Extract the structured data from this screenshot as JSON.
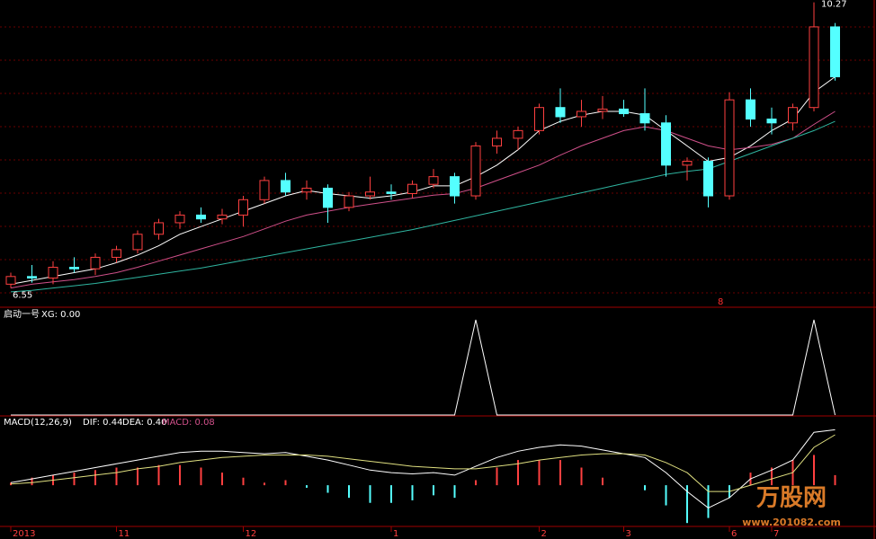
{
  "chart_data": [
    {
      "type": "candlestick",
      "high_label": "10.27",
      "low_label": "6.55",
      "annotation": "8",
      "ylim": [
        6.3,
        10.3
      ],
      "grid": true,
      "up_color": "#ff4040",
      "down_color": "#54ffff",
      "open": [
        6.6,
        6.7,
        6.68,
        6.82,
        6.8,
        6.95,
        7.05,
        7.25,
        7.4,
        7.5,
        7.45,
        7.5,
        7.7,
        7.95,
        7.8,
        7.85,
        7.6,
        7.75,
        7.8,
        7.78,
        7.9,
        8.0,
        7.75,
        8.4,
        8.5,
        8.6,
        8.9,
        8.78,
        8.85,
        8.88,
        8.82,
        8.7,
        8.15,
        8.2,
        7.75,
        9.0,
        8.75,
        8.7,
        8.9,
        9.95
      ],
      "high": [
        6.75,
        6.85,
        6.9,
        6.95,
        7.0,
        7.1,
        7.3,
        7.45,
        7.55,
        7.6,
        7.58,
        7.75,
        8.0,
        8.05,
        7.95,
        7.9,
        7.8,
        8.0,
        7.9,
        7.95,
        8.1,
        8.05,
        8.45,
        8.6,
        8.65,
        8.95,
        9.15,
        9.0,
        9.05,
        9.0,
        9.15,
        8.8,
        8.25,
        8.25,
        9.1,
        9.15,
        8.9,
        8.95,
        10.27,
        10.0
      ],
      "low": [
        6.55,
        6.62,
        6.6,
        6.75,
        6.72,
        6.88,
        7.0,
        7.18,
        7.32,
        7.4,
        7.38,
        7.35,
        7.65,
        7.75,
        7.7,
        7.4,
        7.55,
        7.7,
        7.7,
        7.72,
        7.85,
        7.65,
        7.7,
        8.3,
        8.35,
        8.55,
        8.7,
        8.65,
        8.75,
        8.78,
        8.6,
        8.0,
        7.95,
        7.6,
        7.7,
        8.65,
        8.55,
        8.6,
        8.85,
        9.25
      ],
      "close": [
        6.7,
        6.68,
        6.82,
        6.8,
        6.95,
        7.05,
        7.25,
        7.4,
        7.5,
        7.45,
        7.5,
        7.7,
        7.95,
        7.8,
        7.85,
        7.6,
        7.75,
        7.8,
        7.78,
        7.9,
        8.0,
        7.75,
        8.4,
        8.5,
        8.6,
        8.9,
        8.78,
        8.85,
        8.88,
        8.82,
        8.7,
        8.15,
        8.2,
        7.75,
        9.0,
        8.75,
        8.7,
        8.9,
        9.95,
        9.3
      ],
      "series": [
        {
          "color": "#ffffff",
          "values": [
            6.6,
            6.65,
            6.7,
            6.75,
            6.8,
            6.88,
            6.98,
            7.1,
            7.25,
            7.35,
            7.45,
            7.55,
            7.65,
            7.75,
            7.82,
            7.78,
            7.75,
            7.72,
            7.75,
            7.8,
            7.88,
            7.88,
            8.0,
            8.15,
            8.35,
            8.6,
            8.72,
            8.8,
            8.85,
            8.85,
            8.8,
            8.6,
            8.4,
            8.2,
            8.25,
            8.4,
            8.6,
            8.75,
            9.1,
            9.3
          ]
        },
        {
          "color": "#d0508a",
          "values": [
            6.55,
            6.6,
            6.63,
            6.66,
            6.7,
            6.75,
            6.82,
            6.9,
            6.98,
            7.06,
            7.14,
            7.22,
            7.32,
            7.42,
            7.5,
            7.55,
            7.6,
            7.64,
            7.68,
            7.72,
            7.76,
            7.78,
            7.85,
            7.95,
            8.05,
            8.15,
            8.28,
            8.4,
            8.5,
            8.6,
            8.65,
            8.6,
            8.5,
            8.4,
            8.35,
            8.38,
            8.42,
            8.5,
            8.68,
            8.85
          ]
        },
        {
          "color": "#2fb5a0",
          "values": [
            6.5,
            6.52,
            6.55,
            6.58,
            6.61,
            6.65,
            6.69,
            6.73,
            6.77,
            6.81,
            6.86,
            6.91,
            6.96,
            7.01,
            7.06,
            7.11,
            7.16,
            7.21,
            7.26,
            7.31,
            7.37,
            7.43,
            7.49,
            7.55,
            7.61,
            7.67,
            7.73,
            7.79,
            7.85,
            7.91,
            7.97,
            8.03,
            8.07,
            8.1,
            8.2,
            8.3,
            8.4,
            8.5,
            8.6,
            8.72
          ]
        }
      ]
    },
    {
      "type": "line",
      "name": "启动一号",
      "label": "XG: 0.00",
      "ylim": [
        0,
        1
      ],
      "color": "#ffffff",
      "values": [
        0,
        0,
        0,
        0,
        0,
        0,
        0,
        0,
        0,
        0,
        0,
        0,
        0,
        0,
        0,
        0,
        0,
        0,
        0,
        0,
        0,
        0,
        1,
        0,
        0,
        0,
        0,
        0,
        0,
        0,
        0,
        0,
        0,
        0,
        0,
        0,
        0,
        0,
        1,
        0
      ]
    },
    {
      "type": "macd",
      "title": "MACD(12,26,9)",
      "dif_label": "DIF: 0.44",
      "dea_label": "DEA: 0.40",
      "macd_label": "MACD: 0.08",
      "ylim": [
        -0.32,
        0.5
      ],
      "categories": [
        "2013",
        null,
        null,
        null,
        null,
        "11",
        null,
        null,
        null,
        null,
        null,
        "12",
        null,
        null,
        null,
        null,
        null,
        null,
        "1",
        null,
        null,
        null,
        null,
        null,
        null,
        "2",
        null,
        null,
        null,
        "3",
        null,
        null,
        null,
        null,
        "6",
        null,
        "7",
        null,
        null,
        null
      ],
      "dif": [
        0.02,
        0.05,
        0.08,
        0.11,
        0.14,
        0.17,
        0.2,
        0.23,
        0.26,
        0.27,
        0.27,
        0.26,
        0.25,
        0.26,
        0.23,
        0.2,
        0.16,
        0.12,
        0.1,
        0.09,
        0.1,
        0.08,
        0.15,
        0.22,
        0.27,
        0.3,
        0.32,
        0.31,
        0.28,
        0.25,
        0.22,
        0.1,
        -0.05,
        -0.18,
        -0.1,
        0.05,
        0.12,
        0.2,
        0.42,
        0.44
      ],
      "dea": [
        0.01,
        0.02,
        0.04,
        0.06,
        0.08,
        0.1,
        0.13,
        0.15,
        0.18,
        0.2,
        0.22,
        0.23,
        0.24,
        0.24,
        0.24,
        0.23,
        0.21,
        0.19,
        0.17,
        0.15,
        0.14,
        0.13,
        0.13,
        0.15,
        0.17,
        0.2,
        0.22,
        0.24,
        0.25,
        0.25,
        0.24,
        0.18,
        0.1,
        -0.05,
        -0.05,
        0.0,
        0.05,
        0.1,
        0.3,
        0.4
      ],
      "macd": [
        0.02,
        0.06,
        0.08,
        0.1,
        0.12,
        0.14,
        0.14,
        0.16,
        0.16,
        0.14,
        0.1,
        0.06,
        0.02,
        0.04,
        -0.02,
        -0.06,
        -0.1,
        -0.14,
        -0.14,
        -0.12,
        -0.08,
        -0.1,
        0.04,
        0.14,
        0.2,
        0.2,
        0.2,
        0.14,
        0.06,
        0,
        -0.04,
        -0.16,
        -0.3,
        -0.26,
        -0.1,
        0.1,
        0.14,
        0.2,
        0.24,
        0.08
      ]
    }
  ],
  "watermark": {
    "title": "万股网",
    "url": "www.201082.com"
  }
}
